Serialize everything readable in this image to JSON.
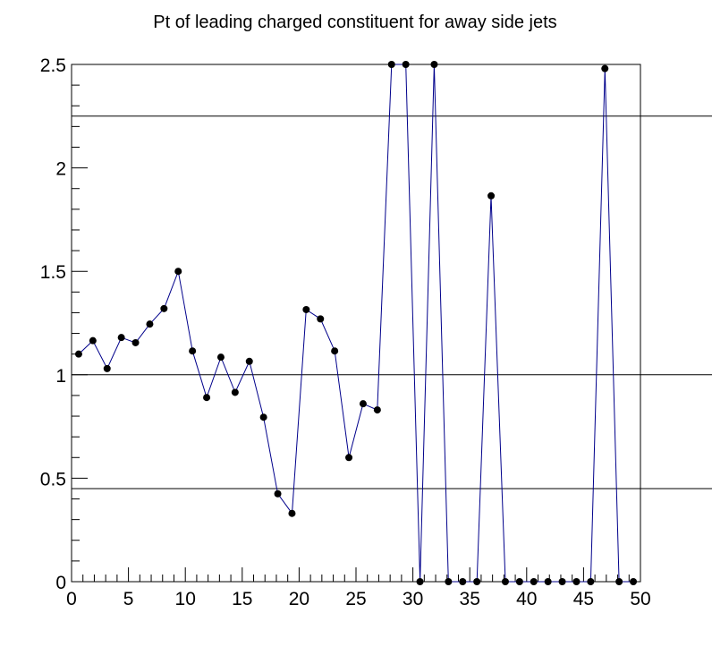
{
  "chart_data": {
    "type": "line",
    "title": "Pt of leading charged constituent for away side jets",
    "xlabel": "",
    "ylabel": "",
    "xlim": [
      0,
      50
    ],
    "ylim": [
      0,
      2.5
    ],
    "x_ticks": [
      "0",
      "5",
      "10",
      "15",
      "20",
      "25",
      "30",
      "35",
      "40",
      "45",
      "50"
    ],
    "y_ticks": [
      "0",
      "0.5",
      "1",
      "1.5",
      "2",
      "2.5"
    ],
    "reference_lines_y": [
      2.25,
      1.0,
      0.45
    ],
    "grid": false,
    "line_color": "#00008b",
    "marker_color": "#000000",
    "series": [
      {
        "x": [
          0.625,
          1.875,
          3.125,
          4.375,
          5.625,
          6.875,
          8.125,
          9.375,
          10.625,
          11.875,
          13.125,
          14.375,
          15.625,
          16.875,
          18.125,
          19.375,
          20.625,
          21.875,
          23.125,
          24.375,
          25.625,
          26.875,
          28.125,
          29.375,
          30.625,
          31.875,
          33.125,
          34.375,
          35.625,
          36.875,
          38.125,
          39.375,
          40.625,
          41.875,
          43.125,
          44.375,
          45.625,
          46.875,
          48.125,
          49.375
        ],
        "y": [
          1.1,
          1.165,
          1.03,
          1.18,
          1.155,
          1.245,
          1.32,
          1.5,
          1.115,
          0.89,
          1.085,
          0.915,
          1.065,
          0.795,
          0.425,
          0.33,
          1.315,
          1.27,
          1.115,
          0.6,
          0.86,
          0.83,
          2.5,
          2.5,
          0.0,
          2.5,
          0.0,
          0.0,
          0.0,
          1.865,
          0.0,
          0.0,
          0.0,
          0.0,
          0.0,
          0.0,
          0.0,
          2.48,
          0.0,
          0.0
        ]
      }
    ]
  }
}
